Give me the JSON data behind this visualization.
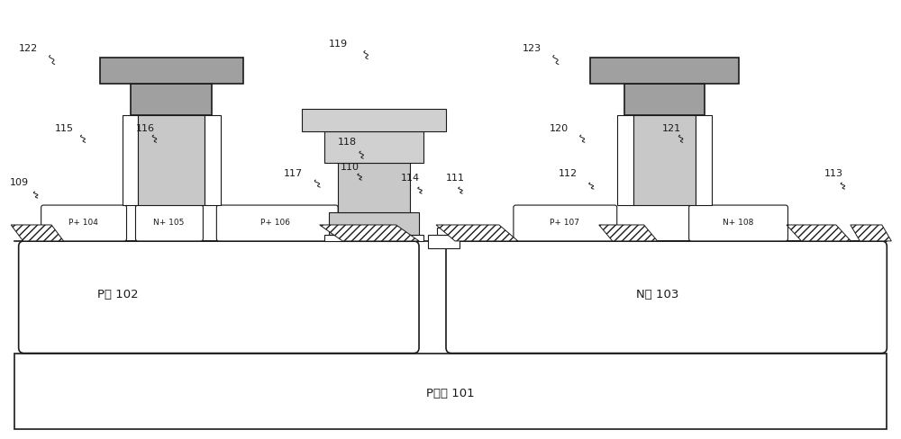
{
  "fig_width": 10.0,
  "fig_height": 4.88,
  "bg_color": "#ffffff",
  "lc": "#1a1a1a",
  "stipple_color": "#c8c8c8",
  "dark_metal": "#a0a0a0",
  "substrate_label": "P腥底 101",
  "pwell_label": "P阱 102",
  "nwell_label": "N阱 103",
  "lw_main": 1.2,
  "lw_thin": 0.8
}
